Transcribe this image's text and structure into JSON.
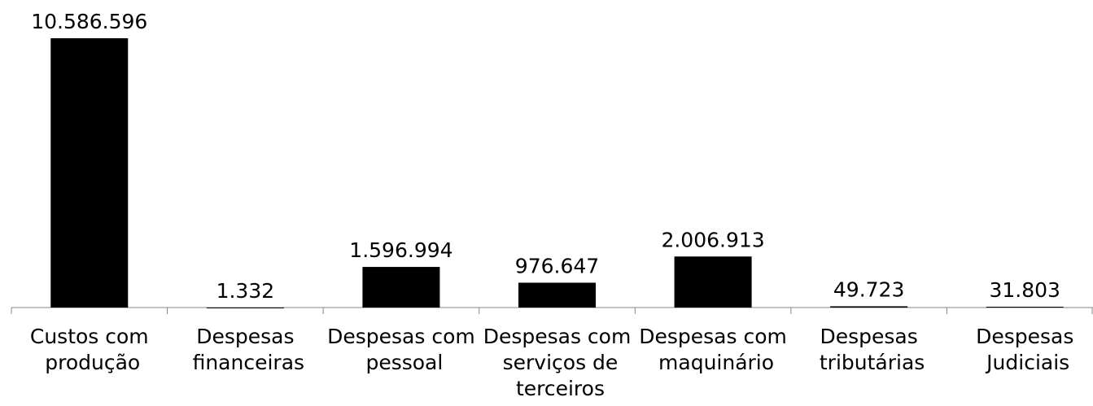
{
  "chart_data": {
    "type": "bar",
    "categories": [
      "Custos com produção",
      "Despesas financeiras",
      "Despesas com pessoal",
      "Despesas com serviços de terceiros",
      "Despesas com maquinário",
      "Despesas tributárias",
      "Despesas Judiciais"
    ],
    "values": [
      10586596,
      1332,
      1596994,
      976647,
      2006913,
      49723,
      31803
    ],
    "value_labels": [
      "10.586.596",
      "1.332",
      "1.596.994",
      "976.647",
      "2.006.913",
      "49.723",
      "31.803"
    ],
    "color": "#000000"
  }
}
